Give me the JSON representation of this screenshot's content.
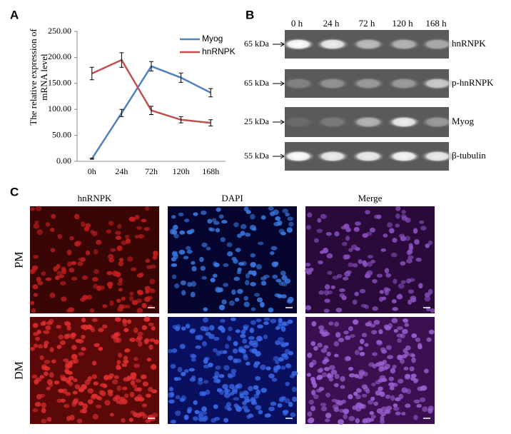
{
  "chart_data": {
    "type": "line",
    "panel": "A",
    "ylabel": [
      "The relative expression of",
      "mRNA level"
    ],
    "categories": [
      "0h",
      "24h",
      "72h",
      "120h",
      "168h"
    ],
    "series": [
      {
        "name": "Myog",
        "color": "#4f81bd",
        "values": [
          5,
          93,
          183,
          161,
          132
        ],
        "errors": [
          1,
          7,
          9,
          9,
          8
        ]
      },
      {
        "name": "hnRNPK",
        "color": "#c0504d",
        "values": [
          169,
          195,
          98,
          80,
          74
        ],
        "errors": [
          12,
          14,
          8,
          6,
          6
        ]
      }
    ],
    "ylim": [
      0,
      250
    ],
    "yticks": [
      {
        "value": 0,
        "label": "0.00"
      },
      {
        "value": 50,
        "label": "50.00"
      },
      {
        "value": 100,
        "label": "100.00"
      },
      {
        "value": 150,
        "label": "150.00"
      },
      {
        "value": 200,
        "label": "200.00"
      },
      {
        "value": 250,
        "label": "250.00"
      }
    ],
    "legend": "upper right"
  },
  "blot": {
    "panel": "B",
    "columns": [
      "0 h",
      "24 h",
      "72 h",
      "120 h",
      "168 h"
    ],
    "rows": [
      {
        "size": "65 kDa",
        "protein": "hnRNPK"
      },
      {
        "size": "65 kDa",
        "protein": "p-hnRNPK"
      },
      {
        "size": "25 kDa",
        "protein": "Myog"
      },
      {
        "size": "55 kDa",
        "protein": "β-tubulin"
      }
    ]
  },
  "microscopy": {
    "panel": "C",
    "columns": [
      "hnRNPK",
      "DAPI",
      "Merge"
    ],
    "rows": [
      "PM",
      "DM"
    ]
  }
}
